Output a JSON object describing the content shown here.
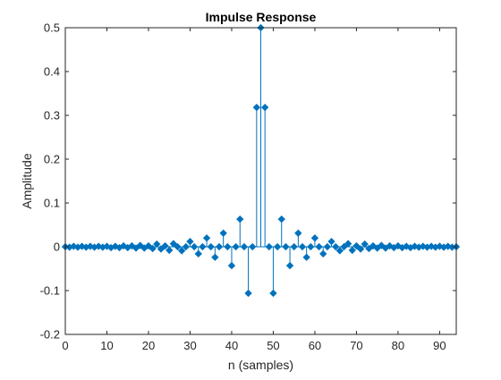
{
  "chart_data": {
    "type": "stem",
    "title": "Impulse Response",
    "xlabel": "n (samples)",
    "ylabel": "Amplitude",
    "xlim": [
      0,
      94
    ],
    "ylim": [
      -0.2,
      0.5
    ],
    "xticks": [
      0,
      10,
      20,
      30,
      40,
      50,
      60,
      70,
      80,
      90
    ],
    "yticks": [
      -0.2,
      -0.1,
      0,
      0.1,
      0.2,
      0.3,
      0.4,
      0.5
    ],
    "ytick_labels": [
      "-0.2",
      "-0.1",
      "0",
      "0.1",
      "0.2",
      "0.3",
      "0.4",
      "0.5"
    ],
    "grid": false,
    "marker": "diamond",
    "color": "#0072BD",
    "x": [
      0,
      1,
      2,
      3,
      4,
      5,
      6,
      7,
      8,
      9,
      10,
      11,
      12,
      13,
      14,
      15,
      16,
      17,
      18,
      19,
      20,
      21,
      22,
      23,
      24,
      25,
      26,
      27,
      28,
      29,
      30,
      31,
      32,
      33,
      34,
      35,
      36,
      37,
      38,
      39,
      40,
      41,
      42,
      43,
      44,
      45,
      46,
      47,
      48,
      49,
      50,
      51,
      52,
      53,
      54,
      55,
      56,
      57,
      58,
      59,
      60,
      61,
      62,
      63,
      64,
      65,
      66,
      67,
      68,
      69,
      70,
      71,
      72,
      73,
      74,
      75,
      76,
      77,
      78,
      79,
      80,
      81,
      82,
      83,
      84,
      85,
      86,
      87,
      88,
      89,
      90,
      91,
      92,
      93,
      94
    ],
    "values": [
      0,
      -0.001,
      0.001,
      -0.001,
      0.001,
      -0.001,
      0.001,
      -0.001,
      0.001,
      -0.001,
      0.001,
      -0.002,
      0.001,
      -0.002,
      0.002,
      -0.002,
      0.002,
      -0.003,
      0.003,
      -0.003,
      0.002,
      -0.004,
      0.006,
      -0.005,
      0.002,
      -0.008,
      0.007,
      0,
      -0.009,
      0,
      0.012,
      0,
      -0.016,
      0,
      0.02,
      0,
      -0.024,
      0,
      0.031,
      0,
      -0.043,
      0,
      0.063,
      0,
      -0.106,
      0,
      0.318,
      0.5,
      0.318,
      0,
      -0.106,
      0,
      0.063,
      0,
      -0.043,
      0,
      0.031,
      0,
      -0.024,
      0,
      0.02,
      0,
      -0.016,
      0,
      0.012,
      0,
      -0.009,
      0,
      0.007,
      -0.008,
      0.002,
      -0.005,
      0.006,
      -0.004,
      0.002,
      -0.003,
      0.003,
      -0.003,
      0.002,
      -0.002,
      0.002,
      -0.002,
      0.001,
      -0.002,
      0.001,
      -0.001,
      0.001,
      -0.001,
      0.001,
      -0.001,
      0.001,
      -0.001,
      0.001,
      -0.001,
      0
    ]
  }
}
